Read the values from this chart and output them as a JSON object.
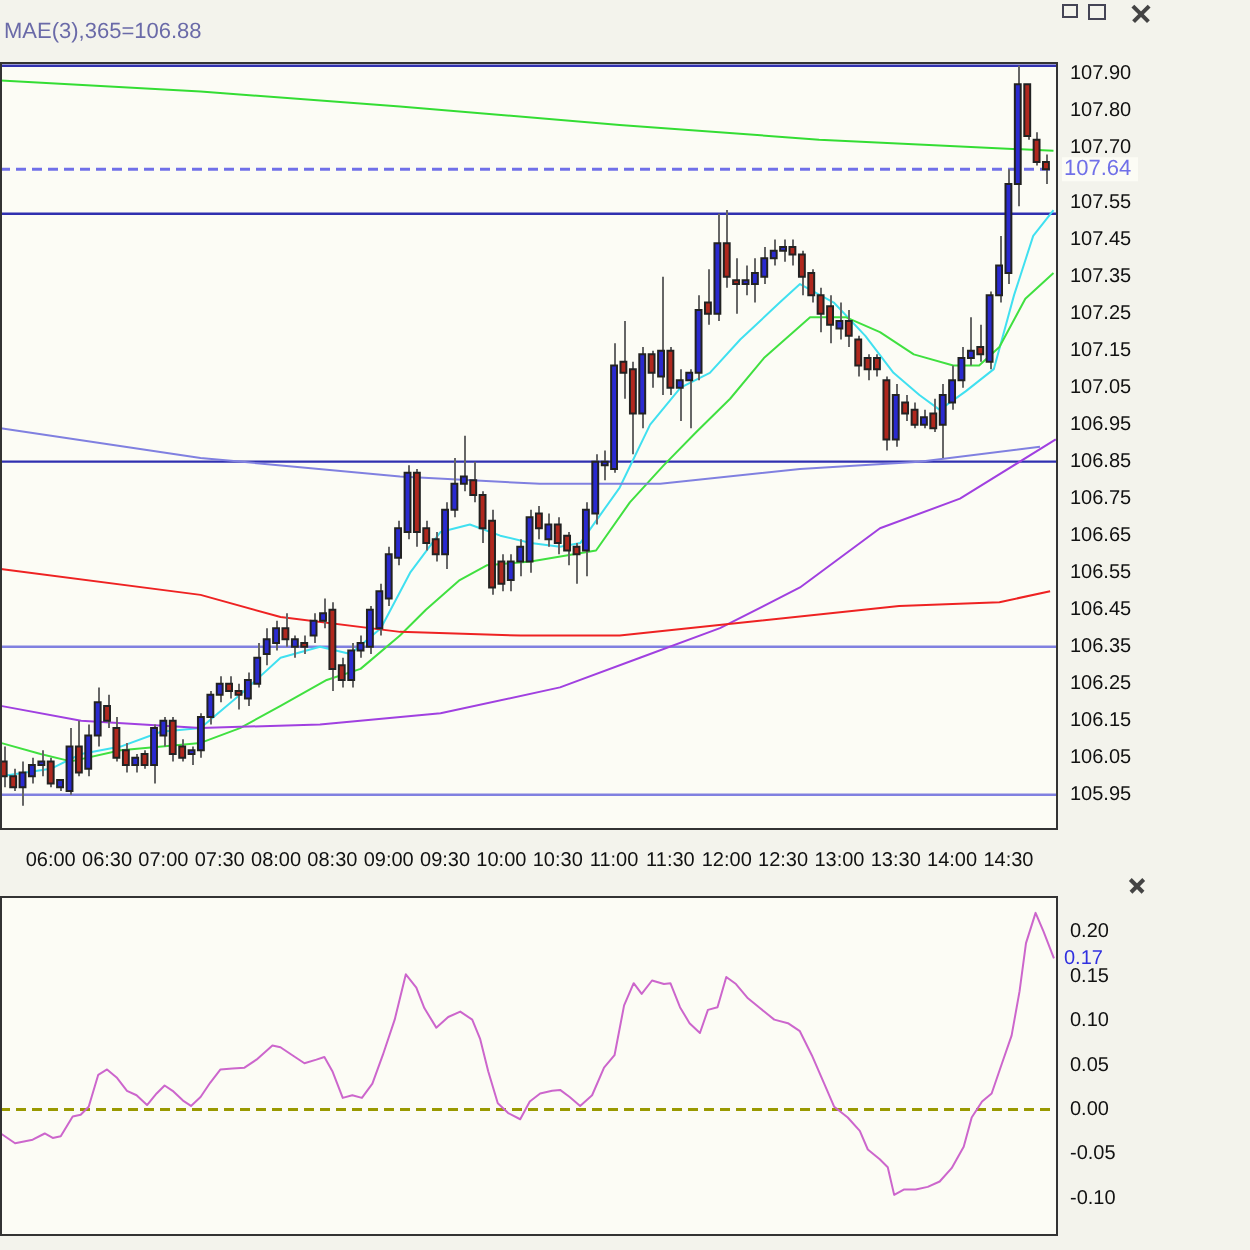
{
  "chart_data": [
    {
      "type": "candlestick",
      "title": "MAE(3),365=106.88",
      "xlim": [
        5.55,
        14.94
      ],
      "ylim": [
        105.86,
        107.93
      ],
      "xticks": [
        {
          "value": 6,
          "label": "06:00"
        },
        {
          "value": 6.5,
          "label": "06:30"
        },
        {
          "value": 7,
          "label": "07:00"
        },
        {
          "value": 7.5,
          "label": "07:30"
        },
        {
          "value": 8,
          "label": "08:00"
        },
        {
          "value": 8.5,
          "label": "08:30"
        },
        {
          "value": 9,
          "label": "09:00"
        },
        {
          "value": 9.5,
          "label": "09:30"
        },
        {
          "value": 10,
          "label": "10:00"
        },
        {
          "value": 10.5,
          "label": "10:30"
        },
        {
          "value": 11,
          "label": "11:00"
        },
        {
          "value": 11.5,
          "label": "11:30"
        },
        {
          "value": 12,
          "label": "12:00"
        },
        {
          "value": 12.5,
          "label": "12:30"
        },
        {
          "value": 13,
          "label": "13:00"
        },
        {
          "value": 13.5,
          "label": "13:30"
        },
        {
          "value": 14,
          "label": "14:00"
        },
        {
          "value": 14.5,
          "label": "14:30"
        }
      ],
      "yticks": [
        105.95,
        106.05,
        106.15,
        106.25,
        106.35,
        106.45,
        106.55,
        106.65,
        106.75,
        106.85,
        106.95,
        107.05,
        107.15,
        107.25,
        107.35,
        107.45,
        107.55,
        {
          "value": 107.7,
          "label": "107.70"
        },
        {
          "value": 107.8,
          "label": "107.80"
        },
        {
          "value": 107.9,
          "label": "107.90"
        }
      ],
      "x": [
        5.583,
        5.667,
        5.75,
        5.833,
        5.917,
        6,
        6.083,
        6.167,
        6.25,
        6.333,
        6.417,
        6.5,
        6.583,
        6.667,
        6.75,
        6.833,
        6.917,
        7,
        7.083,
        7.167,
        7.25,
        7.333,
        7.417,
        7.5,
        7.583,
        7.667,
        7.75,
        7.833,
        7.917,
        8,
        8.083,
        8.167,
        8.25,
        8.333,
        8.417,
        8.5,
        8.583,
        8.667,
        8.75,
        8.833,
        8.917,
        9,
        9.083,
        9.167,
        9.25,
        9.333,
        9.417,
        9.5,
        9.583,
        9.667,
        9.75,
        9.833,
        9.917,
        10,
        10.083,
        10.167,
        10.25,
        10.333,
        10.417,
        10.5,
        10.583,
        10.667,
        10.75,
        10.833,
        10.917,
        11,
        11.083,
        11.167,
        11.25,
        11.333,
        11.417,
        11.5,
        11.583,
        11.667,
        11.75,
        11.833,
        11.917,
        12,
        12.083,
        12.167,
        12.25,
        12.333,
        12.417,
        12.5,
        12.583,
        12.667,
        12.75,
        12.833,
        12.917,
        13,
        13.083,
        13.167,
        13.25,
        13.333,
        13.417,
        13.5,
        13.583,
        13.667,
        13.75,
        13.833,
        13.917,
        14,
        14.083,
        14.167,
        14.25,
        14.333,
        14.417,
        14.5,
        14.583,
        14.667,
        14.75,
        14.833
      ],
      "ohlc": [
        [
          106.04,
          106.08,
          105.97,
          106.0
        ],
        [
          106.0,
          106.02,
          105.96,
          105.97
        ],
        [
          105.97,
          106.04,
          105.92,
          106.01
        ],
        [
          106.0,
          106.05,
          105.98,
          106.03
        ],
        [
          106.03,
          106.07,
          106.0,
          106.04
        ],
        [
          106.04,
          106.05,
          105.97,
          105.98
        ],
        [
          105.97,
          105.99,
          105.96,
          105.99
        ],
        [
          105.96,
          106.13,
          105.95,
          106.08
        ],
        [
          106.08,
          106.15,
          106.0,
          106.01
        ],
        [
          106.02,
          106.14,
          106.0,
          106.11
        ],
        [
          106.11,
          106.24,
          106.08,
          106.2
        ],
        [
          106.19,
          106.22,
          106.13,
          106.15
        ],
        [
          106.13,
          106.16,
          106.04,
          106.05
        ],
        [
          106.07,
          106.09,
          106.01,
          106.03
        ],
        [
          106.03,
          106.06,
          106.01,
          106.05
        ],
        [
          106.06,
          106.07,
          106.02,
          106.03
        ],
        [
          106.03,
          106.14,
          105.98,
          106.13
        ],
        [
          106.11,
          106.16,
          106.08,
          106.15
        ],
        [
          106.15,
          106.16,
          106.04,
          106.06
        ],
        [
          106.08,
          106.1,
          106.04,
          106.05
        ],
        [
          106.06,
          106.08,
          106.03,
          106.07
        ],
        [
          106.07,
          106.17,
          106.05,
          106.16
        ],
        [
          106.16,
          106.23,
          106.14,
          106.22
        ],
        [
          106.22,
          106.27,
          106.2,
          106.25
        ],
        [
          106.25,
          106.27,
          106.21,
          106.23
        ],
        [
          106.23,
          106.25,
          106.18,
          106.22
        ],
        [
          106.21,
          106.28,
          106.19,
          106.26
        ],
        [
          106.25,
          106.36,
          106.24,
          106.32
        ],
        [
          106.33,
          106.4,
          106.3,
          106.37
        ],
        [
          106.36,
          106.42,
          106.34,
          106.4
        ],
        [
          106.4,
          106.44,
          106.35,
          106.37
        ],
        [
          106.35,
          106.38,
          106.32,
          106.37
        ],
        [
          106.36,
          106.38,
          106.33,
          106.35
        ],
        [
          106.38,
          106.44,
          106.36,
          106.42
        ],
        [
          106.42,
          106.48,
          106.4,
          106.44
        ],
        [
          106.45,
          106.47,
          106.23,
          106.29
        ],
        [
          106.3,
          106.32,
          106.24,
          106.26
        ],
        [
          106.26,
          106.36,
          106.24,
          106.34
        ],
        [
          106.34,
          106.38,
          106.32,
          106.36
        ],
        [
          106.35,
          106.46,
          106.33,
          106.45
        ],
        [
          106.4,
          106.52,
          106.38,
          106.5
        ],
        [
          106.48,
          106.62,
          106.46,
          106.6
        ],
        [
          106.59,
          106.69,
          106.57,
          106.67
        ],
        [
          106.66,
          106.84,
          106.64,
          106.82
        ],
        [
          106.82,
          106.83,
          106.62,
          106.66
        ],
        [
          106.67,
          106.69,
          106.61,
          106.63
        ],
        [
          106.64,
          106.66,
          106.58,
          106.6
        ],
        [
          106.6,
          106.74,
          106.56,
          106.72
        ],
        [
          106.72,
          106.86,
          106.7,
          106.79
        ],
        [
          106.79,
          106.92,
          106.77,
          106.81
        ],
        [
          106.8,
          106.85,
          106.74,
          106.76
        ],
        [
          106.76,
          106.77,
          106.63,
          106.67
        ],
        [
          106.69,
          106.72,
          106.49,
          106.51
        ],
        [
          106.58,
          106.6,
          106.5,
          106.52
        ],
        [
          106.53,
          106.6,
          106.5,
          106.58
        ],
        [
          106.58,
          106.64,
          106.54,
          106.62
        ],
        [
          106.58,
          106.72,
          106.55,
          106.7
        ],
        [
          106.71,
          106.73,
          106.64,
          106.67
        ],
        [
          106.64,
          106.71,
          106.62,
          106.68
        ],
        [
          106.68,
          106.7,
          106.6,
          106.63
        ],
        [
          106.65,
          106.66,
          106.57,
          106.61
        ],
        [
          106.62,
          106.63,
          106.52,
          106.6
        ],
        [
          106.61,
          106.74,
          106.54,
          106.72
        ],
        [
          106.71,
          106.87,
          106.68,
          106.85
        ],
        [
          106.84,
          106.88,
          106.8,
          106.85
        ],
        [
          106.83,
          107.17,
          106.82,
          107.11
        ],
        [
          107.12,
          107.23,
          107.02,
          107.09
        ],
        [
          107.1,
          107.12,
          106.87,
          106.98
        ],
        [
          106.98,
          107.16,
          106.94,
          107.14
        ],
        [
          107.14,
          107.15,
          107.05,
          107.09
        ],
        [
          107.08,
          107.35,
          107.03,
          107.15
        ],
        [
          107.15,
          107.16,
          107.03,
          107.05
        ],
        [
          107.05,
          107.1,
          106.96,
          107.07
        ],
        [
          107.07,
          107.1,
          106.94,
          107.09
        ],
        [
          107.09,
          107.3,
          107.07,
          107.26
        ],
        [
          107.28,
          107.37,
          107.22,
          107.25
        ],
        [
          107.25,
          107.52,
          107.23,
          107.44
        ],
        [
          107.44,
          107.53,
          107.32,
          107.35
        ],
        [
          107.34,
          107.4,
          107.25,
          107.33
        ],
        [
          107.33,
          107.38,
          107.3,
          107.34
        ],
        [
          107.33,
          107.4,
          107.28,
          107.36
        ],
        [
          107.35,
          107.43,
          107.33,
          107.4
        ],
        [
          107.4,
          107.45,
          107.38,
          107.42
        ],
        [
          107.42,
          107.45,
          107.39,
          107.43
        ],
        [
          107.43,
          107.45,
          107.38,
          107.41
        ],
        [
          107.41,
          107.42,
          107.3,
          107.35
        ],
        [
          107.36,
          107.37,
          107.28,
          107.3
        ],
        [
          107.3,
          107.32,
          107.2,
          107.25
        ],
        [
          107.27,
          107.3,
          107.17,
          107.22
        ],
        [
          107.21,
          107.28,
          107.18,
          107.23
        ],
        [
          107.23,
          107.26,
          107.16,
          107.19
        ],
        [
          107.18,
          107.19,
          107.08,
          107.11
        ],
        [
          107.13,
          107.14,
          107.07,
          107.1
        ],
        [
          107.13,
          107.14,
          107.08,
          107.1
        ],
        [
          107.07,
          107.08,
          106.88,
          106.91
        ],
        [
          106.91,
          107.06,
          106.89,
          107.03
        ],
        [
          107.01,
          107.03,
          106.96,
          106.98
        ],
        [
          106.99,
          107.01,
          106.94,
          106.95
        ],
        [
          106.95,
          106.99,
          106.94,
          106.97
        ],
        [
          106.98,
          107.02,
          106.93,
          106.94
        ],
        [
          106.95,
          107.06,
          106.86,
          107.03
        ],
        [
          107.01,
          107.11,
          106.99,
          107.07
        ],
        [
          107.07,
          107.16,
          107.05,
          107.13
        ],
        [
          107.13,
          107.24,
          107.11,
          107.15
        ],
        [
          107.16,
          107.22,
          107.12,
          107.14
        ],
        [
          107.12,
          107.31,
          107.1,
          107.3
        ],
        [
          107.3,
          107.46,
          107.28,
          107.38
        ],
        [
          107.36,
          107.64,
          107.33,
          107.6
        ],
        [
          107.6,
          107.92,
          107.54,
          107.87
        ],
        [
          107.87,
          107.87,
          107.72,
          107.73
        ],
        [
          107.72,
          107.74,
          107.65,
          107.66
        ],
        [
          107.66,
          107.68,
          107.6,
          107.64
        ]
      ],
      "colors": [
        "#b0281e",
        "#b0281e",
        "#2a2ad0",
        "#2a2ad0",
        "#2a2ad0",
        "#b0281e",
        "#2a2ad0",
        "#2a2ad0",
        "#b0281e",
        "#2a2ad0",
        "#2a2ad0",
        "#b0281e",
        "#b0281e",
        "#b0281e",
        "#2a2ad0",
        "#b0281e",
        "#2a2ad0",
        "#2a2ad0",
        "#b0281e",
        "#b0281e",
        "#2a2ad0",
        "#2a2ad0",
        "#2a2ad0",
        "#2a2ad0",
        "#b0281e",
        "#b0281e",
        "#2a2ad0",
        "#2a2ad0",
        "#2a2ad0",
        "#2a2ad0",
        "#b0281e",
        "#2a2ad0",
        "#b0281e",
        "#2a2ad0",
        "#2a2ad0",
        "#b0281e",
        "#b0281e",
        "#2a2ad0",
        "#2a2ad0",
        "#2a2ad0",
        "#2a2ad0",
        "#2a2ad0",
        "#2a2ad0",
        "#2a2ad0",
        "#b0281e",
        "#b0281e",
        "#b0281e",
        "#2a2ad0",
        "#2a2ad0",
        "#2a2ad0",
        "#b0281e",
        "#b0281e",
        "#b0281e",
        "#b0281e",
        "#2a2ad0",
        "#2a2ad0",
        "#2a2ad0",
        "#b0281e",
        "#2a2ad0",
        "#b0281e",
        "#b0281e",
        "#b0281e",
        "#2a2ad0",
        "#2a2ad0",
        "#2a2ad0",
        "#2a2ad0",
        "#b0281e",
        "#b0281e",
        "#2a2ad0",
        "#b0281e",
        "#2a2ad0",
        "#b0281e",
        "#2a2ad0",
        "#2a2ad0",
        "#2a2ad0",
        "#b0281e",
        "#2a2ad0",
        "#b0281e",
        "#b0281e",
        "#2a2ad0",
        "#2a2ad0",
        "#2a2ad0",
        "#2a2ad0",
        "#2a2ad0",
        "#b0281e",
        "#b0281e",
        "#b0281e",
        "#b0281e",
        "#b0281e",
        "#2a2ad0",
        "#b0281e",
        "#b0281e",
        "#b0281e",
        "#b0281e",
        "#b0281e",
        "#2a2ad0",
        "#b0281e",
        "#b0281e",
        "#2a2ad0",
        "#b0281e",
        "#2a2ad0",
        "#2a2ad0",
        "#2a2ad0",
        "#2a2ad0",
        "#b0281e",
        "#2a2ad0",
        "#2a2ad0",
        "#2a2ad0",
        "#2a2ad0",
        "#b0281e",
        "#b0281e",
        "#b0281e"
      ],
      "series": [
        {
          "type": "line",
          "color": "#33dd33",
          "x": [
            5.557,
            7.33,
            9.1,
            11.05,
            12.82,
            14.9
          ],
          "values": [
            107.88,
            107.85,
            107.81,
            107.76,
            107.72,
            107.69
          ]
        },
        {
          "type": "line",
          "color": "#8080e0",
          "x": [
            5.557,
            7.33,
            9.1,
            10.34,
            11.41,
            12.65,
            13.71,
            14.78
          ],
          "values": [
            106.94,
            106.86,
            106.81,
            106.79,
            106.79,
            106.83,
            106.85,
            106.89
          ]
        },
        {
          "type": "line",
          "color": "#ee2222",
          "x": [
            5.557,
            7.33,
            8.04,
            9.1,
            10.17,
            11.05,
            12.29,
            13.53,
            14.42,
            14.87
          ],
          "values": [
            106.56,
            106.49,
            106.43,
            106.39,
            106.38,
            106.38,
            106.42,
            106.46,
            106.47,
            106.5
          ]
        },
        {
          "type": "line",
          "color": "#a040e0",
          "x": [
            5.557,
            6.27,
            7.33,
            8.39,
            9.46,
            10.52,
            11.23,
            11.94,
            12.65,
            13.36,
            14.07,
            14.92
          ],
          "values": [
            106.19,
            106.15,
            106.13,
            106.14,
            106.17,
            106.24,
            106.32,
            106.4,
            106.51,
            106.67,
            106.75,
            106.91
          ]
        },
        {
          "type": "line",
          "color": "#40e040",
          "x": [
            5.557,
            5.91,
            6.18,
            6.62,
            7.33,
            7.68,
            8.04,
            8.45,
            8.75,
            9.1,
            9.33,
            9.63,
            9.87,
            10.26,
            10.84,
            11.14,
            11.44,
            11.73,
            12.03,
            12.33,
            12.74,
            13.06,
            13.36,
            13.66,
            14.01,
            14.24,
            14.42,
            14.65,
            14.9
          ],
          "values": [
            106.09,
            106.06,
            106.04,
            106.07,
            106.09,
            106.13,
            106.19,
            106.26,
            106.29,
            106.38,
            106.45,
            106.53,
            106.57,
            106.58,
            106.61,
            106.74,
            106.84,
            106.93,
            107.02,
            107.13,
            107.24,
            107.24,
            107.2,
            107.14,
            107.11,
            107.11,
            107.16,
            107.29,
            107.36
          ]
        },
        {
          "type": "line",
          "color": "#40e0f0",
          "x": [
            5.557,
            6.0,
            6.27,
            6.62,
            6.98,
            7.33,
            7.68,
            8.04,
            8.39,
            8.66,
            8.93,
            9.19,
            9.46,
            9.72,
            9.99,
            10.26,
            10.52,
            10.7,
            11.05,
            11.32,
            11.59,
            11.85,
            12.12,
            12.47,
            12.65,
            12.95,
            13.23,
            13.48,
            13.71,
            13.89,
            14.12,
            14.37,
            14.55,
            14.72,
            14.9
          ],
          "values": [
            106.0,
            106.02,
            106.06,
            106.08,
            106.12,
            106.13,
            106.22,
            106.32,
            106.35,
            106.33,
            106.4,
            106.55,
            106.66,
            106.68,
            106.65,
            106.63,
            106.62,
            106.63,
            106.78,
            106.95,
            107.05,
            107.09,
            107.18,
            107.28,
            107.33,
            107.28,
            107.19,
            107.09,
            107.03,
            106.99,
            107.04,
            107.1,
            107.3,
            107.46,
            107.53
          ]
        }
      ],
      "ref_lines": [
        {
          "axis": "y",
          "value": 107.92,
          "color": "#3030b0"
        },
        {
          "axis": "y",
          "value": 107.64,
          "label": "107.64",
          "color": "#7070e8",
          "line_style": "dashed"
        },
        {
          "axis": "y",
          "value": 107.52,
          "color": "#3030b0"
        },
        {
          "axis": "y",
          "value": 106.85,
          "color": "#3030b0"
        },
        {
          "axis": "y",
          "value": 106.35,
          "color": "#8080e0"
        },
        {
          "axis": "y",
          "value": 105.95,
          "color": "#8080e0"
        }
      ]
    },
    {
      "type": "line",
      "xlim": [
        5.55,
        14.94
      ],
      "ylim": [
        -0.14,
        0.24
      ],
      "tick_labels": "y",
      "yticks": [
        {
          "value": -0.1,
          "label": "-0.10"
        },
        -0.05,
        {
          "value": 0,
          "label": "0.00"
        },
        0.05,
        {
          "value": 0.1,
          "label": "0.10"
        },
        0.15,
        {
          "value": 0.2,
          "label": "0.20"
        }
      ],
      "series": [
        {
          "type": "line",
          "color": "#cc66cc",
          "x": [
            5.557,
            5.684,
            5.84,
            5.947,
            6.018,
            6.089,
            6.195,
            6.266,
            6.337,
            6.422,
            6.5,
            6.585,
            6.677,
            6.762,
            6.855,
            6.94,
            7.011,
            7.082,
            7.174,
            7.245,
            7.33,
            7.415,
            7.507,
            7.613,
            7.72,
            7.826,
            7.968,
            8.039,
            8.145,
            8.252,
            8.358,
            8.429,
            8.5,
            8.592,
            8.677,
            8.762,
            8.855,
            8.947,
            9.053,
            9.152,
            9.245,
            9.316,
            9.422,
            9.528,
            9.635,
            9.741,
            9.812,
            9.883,
            9.968,
            10.06,
            10.167,
            10.252,
            10.344,
            10.45,
            10.521,
            10.606,
            10.699,
            10.805,
            10.911,
            11.004,
            11.089,
            11.174,
            11.245,
            11.337,
            11.443,
            11.5,
            11.585,
            11.67,
            11.762,
            11.833,
            11.918,
            11.996,
            12.082,
            12.188,
            12.294,
            12.422,
            12.543,
            12.649,
            12.755,
            12.862,
            12.954,
            13.074,
            13.181,
            13.252,
            13.358,
            13.429,
            13.486,
            13.571,
            13.677,
            13.784,
            13.89,
            13.996,
            14.103,
            14.174,
            14.266,
            14.351,
            14.443,
            14.528,
            14.599,
            14.656,
            14.741,
            14.812,
            14.904
          ],
          "values": [
            -0.027,
            -0.038,
            -0.034,
            -0.027,
            -0.032,
            -0.03,
            -0.008,
            -0.006,
            0.003,
            0.039,
            0.045,
            0.036,
            0.021,
            0.016,
            0.005,
            0.018,
            0.027,
            0.021,
            0.01,
            0.004,
            0.014,
            0.03,
            0.045,
            0.046,
            0.047,
            0.056,
            0.072,
            0.07,
            0.061,
            0.052,
            0.056,
            0.059,
            0.043,
            0.013,
            0.016,
            0.013,
            0.029,
            0.061,
            0.101,
            0.152,
            0.137,
            0.114,
            0.092,
            0.104,
            0.11,
            0.101,
            0.079,
            0.043,
            0.007,
            -0.004,
            -0.011,
            0.009,
            0.018,
            0.021,
            0.022,
            0.014,
            0.004,
            0.016,
            0.047,
            0.061,
            0.117,
            0.142,
            0.13,
            0.145,
            0.141,
            0.142,
            0.115,
            0.097,
            0.086,
            0.112,
            0.115,
            0.149,
            0.141,
            0.125,
            0.114,
            0.101,
            0.097,
            0.088,
            0.061,
            0.03,
            0.003,
            -0.009,
            -0.024,
            -0.045,
            -0.056,
            -0.065,
            -0.096,
            -0.09,
            -0.09,
            -0.087,
            -0.081,
            -0.066,
            -0.042,
            -0.009,
            0.009,
            0.018,
            0.052,
            0.083,
            0.133,
            0.187,
            0.221,
            0.2,
            0.17
          ]
        }
      ],
      "ref_lines": [
        {
          "axis": "y",
          "value": 0,
          "color": "#999900",
          "line_style": "dashed"
        }
      ],
      "annotations": [
        "0.17"
      ]
    }
  ]
}
